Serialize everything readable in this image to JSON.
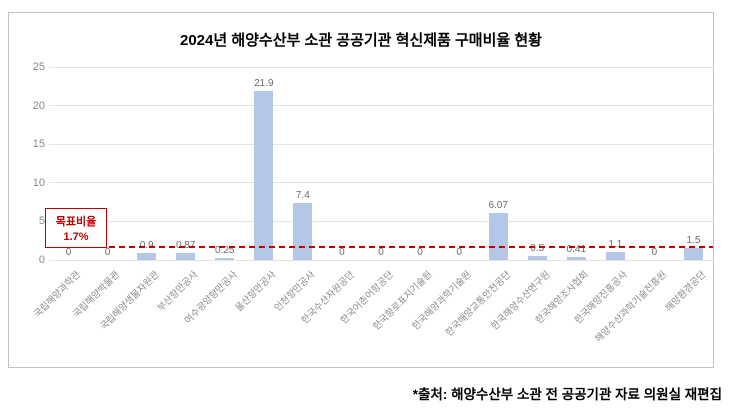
{
  "source_note": "*출처: 해양수산부 소관 전 공공기관 자료 의원실 재편집",
  "target_label": {
    "line1": "목표비율",
    "line2": "1.7%"
  },
  "colors": {
    "bar": "#b4c7e7",
    "target_red": "#c00000",
    "gridline": "#e4e4e4",
    "tick_text": "#8a8a8a",
    "value_text": "#6b6b6b"
  },
  "chart_data": {
    "type": "bar",
    "title": "2024년 해양수산부 소관 공공기관 혁신제품 구매비율 현황",
    "categories": [
      "국립해양과학관",
      "국립해양박물관",
      "국립해양생물자원관",
      "부산항만공사",
      "여수광양항만공사",
      "울산항만공사",
      "인천항만공사",
      "한국수산자원공단",
      "한국어촌어항공단",
      "한국항로표지기술원",
      "한국해양과학기술원",
      "한국해양교통안전공단",
      "한국해양수산연구원",
      "한국해양조사협회",
      "한국해양진흥공사",
      "해양수산과학기술진흥원",
      "해양환경공단"
    ],
    "values": [
      0,
      0,
      0.9,
      0.87,
      0.25,
      21.9,
      7.4,
      0,
      0,
      0,
      0,
      6.07,
      0.5,
      0.41,
      1.1,
      0,
      1.5
    ],
    "target_line_value": 1.7,
    "ylim": [
      0,
      25
    ],
    "yticks": [
      0,
      5,
      10,
      15,
      20,
      25
    ],
    "grid": true,
    "legend": false,
    "xlabel": "",
    "ylabel": ""
  }
}
